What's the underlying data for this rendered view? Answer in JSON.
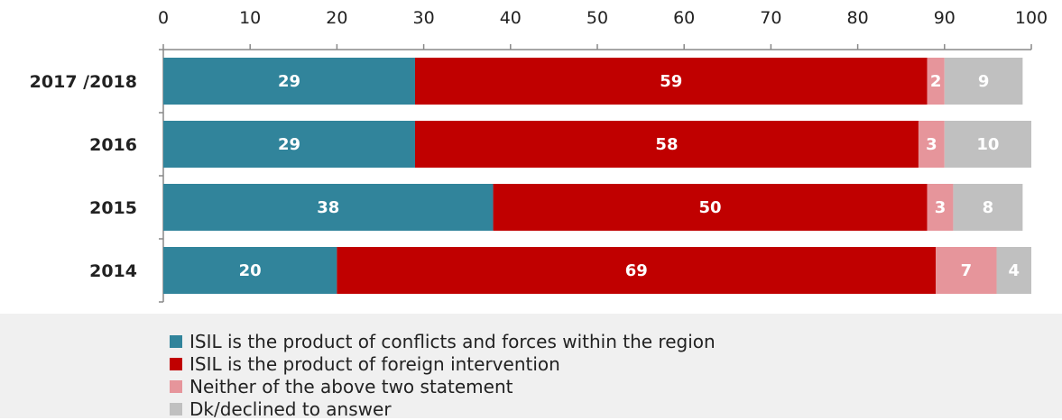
{
  "chart_data": {
    "type": "bar",
    "orientation": "horizontal",
    "stacked": true,
    "categories": [
      "2017 /2018",
      "2016",
      "2015",
      "2014"
    ],
    "series": [
      {
        "name": "ISIL is the product of conflicts and forces within the region",
        "color": "#31849b",
        "values": [
          29,
          29,
          38,
          20
        ]
      },
      {
        "name": "ISIL is the product of foreign intervention",
        "color": "#c00000",
        "values": [
          59,
          58,
          50,
          69
        ]
      },
      {
        "name": "Neither of the above two statement",
        "color": "#e6959b",
        "values": [
          2,
          3,
          3,
          7
        ]
      },
      {
        "name": "Dk/declined to answer",
        "color": "#c0c0c0",
        "values": [
          9,
          10,
          8,
          4
        ]
      }
    ],
    "xlim": [
      0,
      100
    ],
    "xticks": [
      "0",
      "10",
      "20",
      "30",
      "40",
      "50",
      "60",
      "70",
      "80",
      "90",
      "100"
    ],
    "axis_position": "top",
    "grid": false,
    "legend_position": "bottom"
  }
}
